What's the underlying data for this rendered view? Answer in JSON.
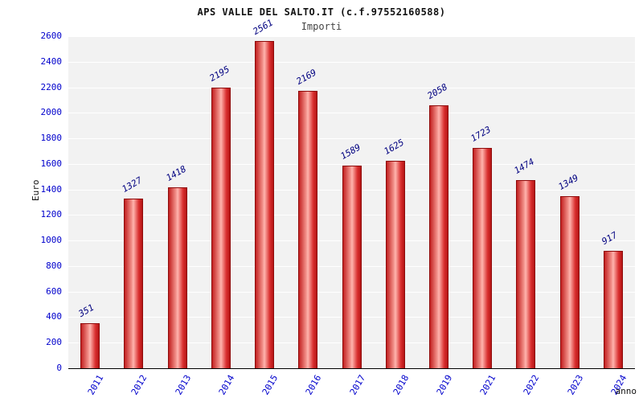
{
  "chart_data": {
    "type": "bar",
    "title": "APS VALLE DEL SALTO.IT (c.f.97552160588)",
    "subtitle": "Importi",
    "xlabel": "anno",
    "ylabel": "Euro",
    "categories": [
      "2011",
      "2012",
      "2013",
      "2014",
      "2015",
      "2016",
      "2017",
      "2018",
      "2019",
      "2021",
      "2022",
      "2023",
      "2024"
    ],
    "values": [
      351,
      1327,
      1418,
      2195,
      2561,
      2169,
      1589,
      1625,
      2058,
      1723,
      1474,
      1349,
      917
    ],
    "ylim": [
      0,
      2600
    ],
    "ytick_step": 200,
    "grid": true,
    "legend": "none",
    "colors": {
      "bar_main": "#d93030",
      "bar_border": "#8f0b0b",
      "tick_text": "#0000cc",
      "value_text": "#000080",
      "plot_bg": "#f2f2f2"
    }
  }
}
